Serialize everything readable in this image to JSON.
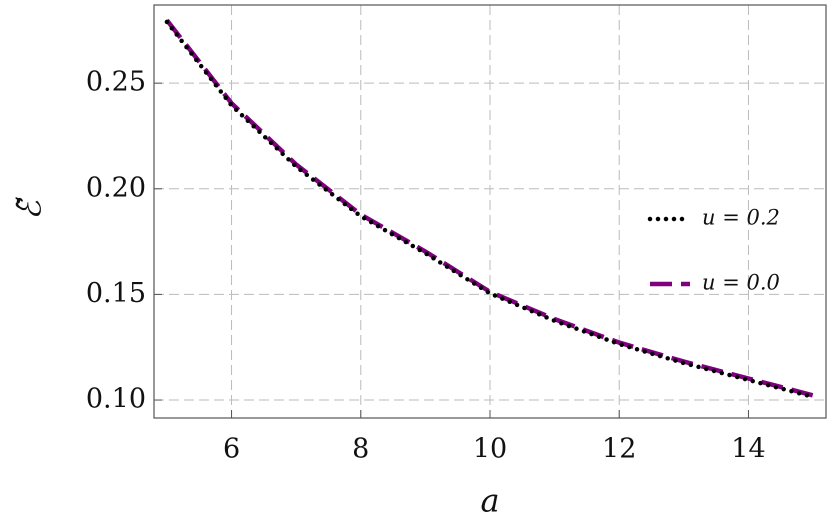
{
  "chart_data": {
    "type": "line",
    "x_label": "a",
    "y_label": "ℰ̃",
    "x": [
      5,
      6,
      7,
      8,
      9,
      10,
      11,
      12,
      13,
      14,
      15
    ],
    "series": [
      {
        "name": "u = 0.2",
        "color": "#000000",
        "dash": "dotted",
        "values": [
          0.279,
          0.2395,
          0.2105,
          0.187,
          0.1695,
          0.1505,
          0.1375,
          0.1265,
          0.1175,
          0.1095,
          0.1015
        ]
      },
      {
        "name": "u = 0.0",
        "color": "#800080",
        "dash": "dashed",
        "values": [
          0.2798,
          0.2405,
          0.2115,
          0.1878,
          0.1703,
          0.1512,
          0.1383,
          0.1272,
          0.1182,
          0.1102,
          0.1022
        ]
      }
    ],
    "xlim": [
      4.8,
      15.2
    ],
    "ylim": [
      0.0915,
      0.287
    ],
    "xticks": [
      6,
      8,
      10,
      12,
      14
    ],
    "yticks": [
      {
        "value": 0.1,
        "label": "0.10"
      },
      0.15,
      {
        "value": 0.2,
        "label": "0.20"
      },
      0.25
    ],
    "grid": true,
    "legend": "right"
  }
}
